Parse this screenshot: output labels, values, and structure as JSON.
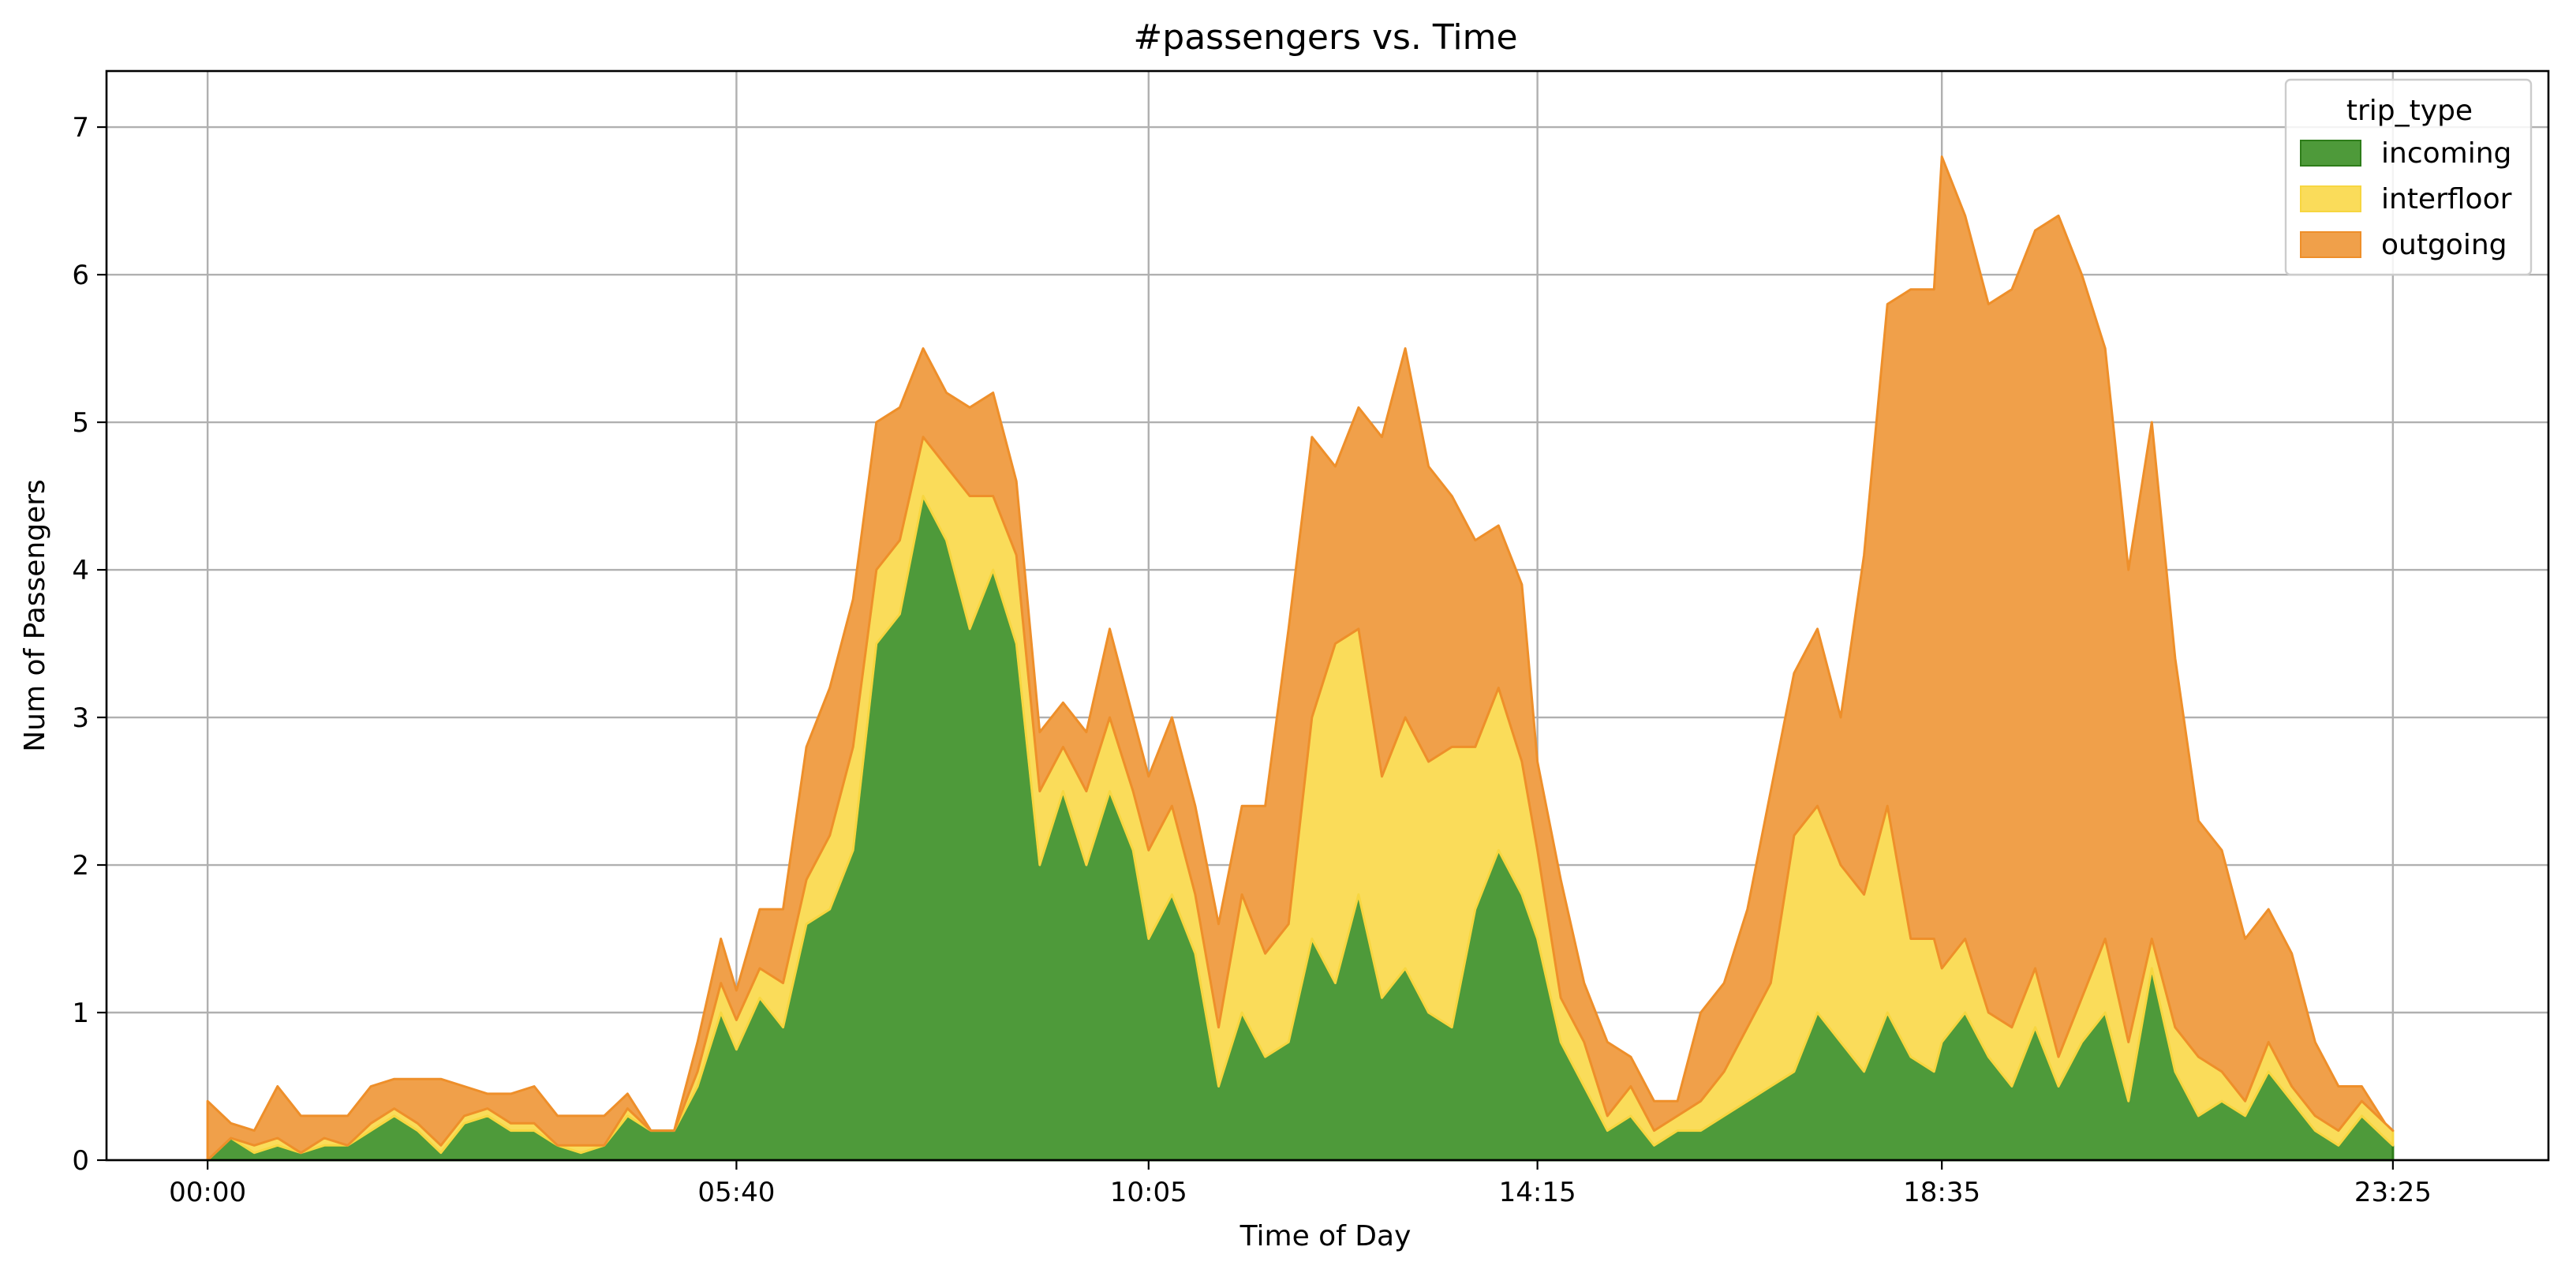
{
  "chart_data": {
    "type": "area",
    "stacked": true,
    "title": "#passengers vs. Time",
    "xlabel": "Time of Day",
    "ylabel": "Num of Passengers",
    "x_ticks": [
      "00:00",
      "05:40",
      "10:05",
      "14:15",
      "18:35",
      "23:25"
    ],
    "x_tick_minutes": [
      0,
      340,
      605,
      855,
      1115,
      1405
    ],
    "y_ticks": [
      0,
      1,
      2,
      3,
      4,
      5,
      6,
      7
    ],
    "xlim_minutes": [
      -65,
      1505
    ],
    "ylim": [
      0,
      7.38
    ],
    "grid": true,
    "legend": {
      "title": "trip_type",
      "position": "top-right"
    },
    "series": [
      {
        "name": "incoming",
        "color": "#2e7d1a",
        "fill": "#4e9a3a"
      },
      {
        "name": "interfloor",
        "color": "#f7d640",
        "fill": "#fadc5a"
      },
      {
        "name": "outgoing",
        "color": "#ee8f2a",
        "fill": "#f0a04a"
      }
    ],
    "x_minutes": [
      0,
      15,
      30,
      45,
      60,
      75,
      90,
      105,
      120,
      135,
      150,
      165,
      180,
      195,
      210,
      225,
      240,
      255,
      270,
      285,
      300,
      315,
      330,
      340,
      355,
      370,
      385,
      400,
      415,
      430,
      445,
      460,
      475,
      490,
      505,
      520,
      535,
      550,
      565,
      580,
      595,
      605,
      620,
      635,
      650,
      665,
      680,
      695,
      710,
      725,
      740,
      755,
      770,
      785,
      800,
      815,
      830,
      845,
      855,
      870,
      885,
      900,
      915,
      930,
      945,
      960,
      975,
      990,
      1005,
      1020,
      1035,
      1050,
      1065,
      1080,
      1095,
      1110,
      1115,
      1130,
      1145,
      1160,
      1175,
      1190,
      1205,
      1220,
      1235,
      1250,
      1265,
      1280,
      1295,
      1310,
      1325,
      1340,
      1355,
      1370,
      1385,
      1400,
      1405
    ],
    "incoming": [
      0.0,
      0.15,
      0.05,
      0.1,
      0.05,
      0.1,
      0.1,
      0.2,
      0.3,
      0.2,
      0.05,
      0.25,
      0.3,
      0.2,
      0.2,
      0.1,
      0.05,
      0.1,
      0.3,
      0.2,
      0.2,
      0.5,
      1.0,
      0.75,
      1.1,
      0.9,
      1.6,
      1.7,
      2.1,
      3.5,
      3.7,
      4.5,
      4.2,
      3.6,
      4.0,
      3.5,
      2.0,
      2.5,
      2.0,
      2.5,
      2.1,
      1.5,
      1.8,
      1.4,
      0.5,
      1.0,
      0.7,
      0.8,
      1.5,
      1.2,
      1.8,
      1.1,
      1.3,
      1.0,
      0.9,
      1.7,
      2.1,
      1.8,
      1.5,
      0.8,
      0.5,
      0.2,
      0.3,
      0.1,
      0.2,
      0.2,
      0.3,
      0.4,
      0.5,
      0.6,
      1.0,
      0.8,
      0.6,
      1.0,
      0.7,
      0.6,
      0.8,
      1.0,
      0.7,
      0.5,
      0.9,
      0.5,
      0.8,
      1.0,
      0.4,
      1.3,
      0.6,
      0.3,
      0.4,
      0.3,
      0.6,
      0.4,
      0.2,
      0.1,
      0.3,
      0.15,
      0.1
    ],
    "interfloor": [
      0.0,
      0.0,
      0.05,
      0.05,
      0.0,
      0.05,
      0.0,
      0.05,
      0.05,
      0.05,
      0.05,
      0.05,
      0.05,
      0.05,
      0.05,
      0.0,
      0.05,
      0.0,
      0.05,
      0.0,
      0.0,
      0.1,
      0.2,
      0.2,
      0.2,
      0.3,
      0.3,
      0.5,
      0.7,
      0.5,
      0.5,
      0.4,
      0.5,
      0.9,
      0.5,
      0.6,
      0.5,
      0.3,
      0.5,
      0.5,
      0.4,
      0.6,
      0.6,
      0.4,
      0.4,
      0.8,
      0.7,
      0.8,
      1.5,
      2.3,
      1.8,
      1.5,
      1.7,
      1.7,
      1.9,
      1.1,
      1.1,
      0.9,
      0.6,
      0.3,
      0.3,
      0.1,
      0.2,
      0.1,
      0.1,
      0.2,
      0.3,
      0.5,
      0.7,
      1.6,
      1.4,
      1.2,
      1.2,
      1.4,
      0.8,
      0.9,
      0.5,
      0.5,
      0.3,
      0.4,
      0.4,
      0.2,
      0.3,
      0.5,
      0.4,
      0.2,
      0.3,
      0.4,
      0.2,
      0.1,
      0.2,
      0.1,
      0.1,
      0.1,
      0.1,
      0.1,
      0.1
    ],
    "outgoing": [
      0.4,
      0.1,
      0.1,
      0.35,
      0.25,
      0.15,
      0.2,
      0.25,
      0.2,
      0.3,
      0.45,
      0.2,
      0.1,
      0.2,
      0.25,
      0.2,
      0.2,
      0.2,
      0.1,
      0.0,
      0.0,
      0.2,
      0.3,
      0.2,
      0.4,
      0.5,
      0.9,
      1.0,
      1.0,
      1.0,
      0.9,
      0.6,
      0.5,
      0.6,
      0.7,
      0.5,
      0.4,
      0.3,
      0.4,
      0.6,
      0.5,
      0.5,
      0.6,
      0.6,
      0.7,
      0.6,
      1.0,
      2.0,
      1.9,
      1.2,
      1.5,
      2.3,
      2.5,
      2.0,
      1.7,
      1.4,
      1.1,
      1.2,
      0.6,
      0.8,
      0.4,
      0.5,
      0.2,
      0.2,
      0.1,
      0.6,
      0.6,
      0.8,
      1.3,
      1.1,
      1.2,
      1.0,
      2.3,
      3.4,
      4.4,
      4.4,
      5.5,
      4.9,
      4.8,
      5.0,
      5.0,
      5.7,
      4.9,
      4.0,
      3.2,
      3.5,
      2.5,
      1.6,
      1.5,
      1.1,
      0.9,
      0.9,
      0.5,
      0.3,
      0.1,
      0.0,
      0.0
    ]
  }
}
